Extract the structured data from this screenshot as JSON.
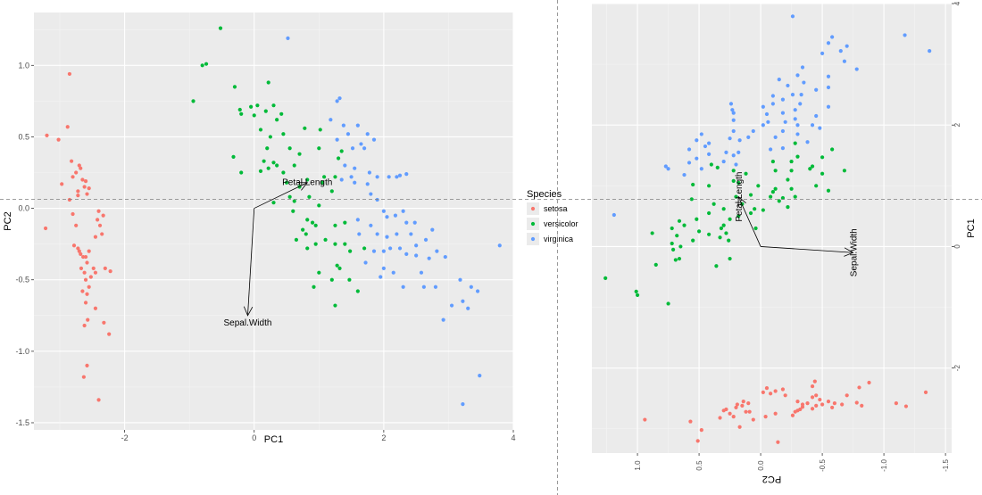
{
  "colors": {
    "setosa": "#F8766D",
    "versicolor": "#00BA38",
    "virginica": "#619CFF",
    "panel_bg": "#EBEBEB",
    "grid_major": "#FFFFFF",
    "grid_minor": "#F4F4F4",
    "tick_text": "#4D4D4D",
    "arrow": "#000000",
    "divider": "#808080"
  },
  "legend": {
    "title": "Species",
    "entries": [
      {
        "label": "setosa",
        "color": "#F8766D"
      },
      {
        "label": "versicolor",
        "color": "#00BA38"
      },
      {
        "label": "virginica",
        "color": "#619CFF"
      }
    ]
  },
  "chart_data": [
    {
      "type": "scatter",
      "xlabel": "PC1",
      "ylabel": "PC2",
      "xlim": [
        -3.4,
        4.0
      ],
      "ylim": [
        -1.55,
        1.37
      ],
      "xticks": [
        -2,
        0,
        2,
        4
      ],
      "yticks": [
        -1.5,
        -1.0,
        -0.5,
        0.0,
        0.5,
        1.0
      ],
      "ytick_labels": [
        "-1.5",
        "-1.0",
        "-0.5",
        "0.0",
        "0.5",
        "1.0"
      ],
      "grid": true,
      "series": [
        {
          "name": "setosa",
          "points": [
            [
              -3.2,
              0.51
            ],
            [
              -3.22,
              -0.14
            ],
            [
              -3.02,
              0.48
            ],
            [
              -2.97,
              0.17
            ],
            [
              -2.88,
              0.57
            ],
            [
              -2.85,
              0.94
            ],
            [
              -2.82,
              0.33
            ],
            [
              -2.8,
              0.22
            ],
            [
              -2.75,
              0.25
            ],
            [
              -2.72,
              0.12
            ],
            [
              -2.72,
              0.09
            ],
            [
              -2.7,
              0.3
            ],
            [
              -2.68,
              0.28
            ],
            [
              -2.65,
              0.2
            ],
            [
              -2.62,
              0.15
            ],
            [
              -2.6,
              0.19
            ],
            [
              -2.58,
              0.1
            ],
            [
              -2.55,
              0.14
            ],
            [
              -2.85,
              0.06
            ],
            [
              -2.8,
              -0.04
            ],
            [
              -2.75,
              -0.12
            ],
            [
              -2.78,
              -0.26
            ],
            [
              -2.72,
              -0.28
            ],
            [
              -2.7,
              -0.3
            ],
            [
              -2.68,
              -0.32
            ],
            [
              -2.64,
              -0.34
            ],
            [
              -2.6,
              -0.34
            ],
            [
              -2.67,
              -0.42
            ],
            [
              -2.62,
              -0.45
            ],
            [
              -2.58,
              -0.38
            ],
            [
              -2.55,
              -0.3
            ],
            [
              -2.52,
              -0.48
            ],
            [
              -2.48,
              -0.42
            ],
            [
              -2.45,
              -0.45
            ],
            [
              -2.65,
              -0.58
            ],
            [
              -2.6,
              -0.5
            ],
            [
              -2.58,
              -0.6
            ],
            [
              -2.55,
              -0.55
            ],
            [
              -2.45,
              -0.2
            ],
            [
              -2.42,
              -0.08
            ],
            [
              -2.4,
              -0.02
            ],
            [
              -2.38,
              -0.12
            ],
            [
              -2.35,
              -0.18
            ],
            [
              -2.33,
              -0.05
            ],
            [
              -2.3,
              -0.42
            ],
            [
              -2.22,
              -0.44
            ],
            [
              -2.62,
              -0.82
            ],
            [
              -2.57,
              -0.78
            ],
            [
              -2.45,
              -0.7
            ],
            [
              -2.32,
              -0.8
            ],
            [
              -2.24,
              -0.88
            ],
            [
              -2.58,
              -1.1
            ],
            [
              -2.63,
              -1.18
            ],
            [
              -2.4,
              -1.34
            ],
            [
              -2.6,
              -0.66
            ]
          ]
        },
        {
          "name": "versicolor",
          "points": [
            [
              -0.52,
              1.26
            ],
            [
              -0.8,
              1.0
            ],
            [
              -0.74,
              1.01
            ],
            [
              -0.94,
              0.75
            ],
            [
              -0.3,
              0.85
            ],
            [
              -0.2,
              0.66
            ],
            [
              -0.05,
              0.71
            ],
            [
              0.05,
              0.72
            ],
            [
              0.18,
              0.68
            ],
            [
              0.22,
              0.88
            ],
            [
              0.3,
              0.72
            ],
            [
              0.42,
              0.66
            ],
            [
              -0.22,
              0.69
            ],
            [
              0.0,
              0.65
            ],
            [
              0.35,
              0.62
            ],
            [
              0.1,
              0.55
            ],
            [
              0.25,
              0.5
            ],
            [
              0.45,
              0.52
            ],
            [
              0.78,
              0.56
            ],
            [
              0.55,
              0.42
            ],
            [
              0.7,
              0.38
            ],
            [
              1.0,
              0.42
            ],
            [
              0.2,
              0.42
            ],
            [
              0.15,
              0.33
            ],
            [
              0.3,
              0.32
            ],
            [
              0.22,
              0.28
            ],
            [
              0.35,
              0.3
            ],
            [
              0.62,
              0.3
            ],
            [
              0.1,
              0.26
            ],
            [
              -0.32,
              0.36
            ],
            [
              -0.2,
              0.25
            ],
            [
              1.02,
              0.55
            ],
            [
              1.35,
              0.4
            ],
            [
              1.3,
              0.35
            ],
            [
              0.45,
              0.25
            ],
            [
              0.82,
              0.2
            ],
            [
              0.5,
              0.18
            ],
            [
              1.08,
              0.22
            ],
            [
              1.25,
              0.22
            ],
            [
              0.7,
              0.15
            ],
            [
              1.2,
              0.12
            ],
            [
              1.05,
              0.18
            ],
            [
              0.55,
              0.08
            ],
            [
              0.3,
              0.04
            ],
            [
              0.62,
              0.05
            ],
            [
              0.85,
              0.08
            ],
            [
              1.0,
              0.02
            ],
            [
              0.6,
              -0.02
            ],
            [
              0.9,
              -0.1
            ],
            [
              0.82,
              -0.08
            ],
            [
              0.95,
              -0.12
            ],
            [
              1.25,
              -0.12
            ],
            [
              0.75,
              -0.15
            ],
            [
              0.8,
              -0.18
            ],
            [
              0.65,
              -0.22
            ],
            [
              0.82,
              -0.28
            ],
            [
              1.4,
              -0.1
            ],
            [
              0.95,
              -0.25
            ],
            [
              1.1,
              -0.22
            ],
            [
              1.25,
              -0.25
            ],
            [
              1.4,
              -0.25
            ],
            [
              1.7,
              -0.28
            ],
            [
              1.48,
              -0.3
            ],
            [
              1.28,
              -0.4
            ],
            [
              1.32,
              -0.42
            ],
            [
              1.2,
              -0.5
            ],
            [
              1.47,
              -0.5
            ],
            [
              1.0,
              -0.45
            ],
            [
              0.92,
              -0.55
            ],
            [
              1.6,
              -0.58
            ],
            [
              1.25,
              -0.68
            ]
          ]
        },
        {
          "name": "virginica",
          "points": [
            [
              0.52,
              1.19
            ],
            [
              1.28,
              0.75
            ],
            [
              1.32,
              0.77
            ],
            [
              1.18,
              0.62
            ],
            [
              1.38,
              0.58
            ],
            [
              1.45,
              0.52
            ],
            [
              1.6,
              0.58
            ],
            [
              1.75,
              0.52
            ],
            [
              1.85,
              0.48
            ],
            [
              1.28,
              0.48
            ],
            [
              1.52,
              0.42
            ],
            [
              1.65,
              0.45
            ],
            [
              1.7,
              0.42
            ],
            [
              1.4,
              0.3
            ],
            [
              1.55,
              0.28
            ],
            [
              1.78,
              0.25
            ],
            [
              1.9,
              0.22
            ],
            [
              2.08,
              0.22
            ],
            [
              2.2,
              0.22
            ],
            [
              2.25,
              0.23
            ],
            [
              2.35,
              0.24
            ],
            [
              1.5,
              0.22
            ],
            [
              1.35,
              0.2
            ],
            [
              1.55,
              0.18
            ],
            [
              1.75,
              0.17
            ],
            [
              1.8,
              0.1
            ],
            [
              1.9,
              0.06
            ],
            [
              2.0,
              -0.02
            ],
            [
              2.05,
              -0.06
            ],
            [
              2.18,
              -0.05
            ],
            [
              2.35,
              -0.1
            ],
            [
              2.48,
              -0.1
            ],
            [
              2.3,
              -0.02
            ],
            [
              1.6,
              -0.08
            ],
            [
              1.8,
              -0.12
            ],
            [
              1.9,
              -0.18
            ],
            [
              2.05,
              -0.2
            ],
            [
              2.2,
              -0.18
            ],
            [
              2.42,
              -0.18
            ],
            [
              1.85,
              -0.3
            ],
            [
              2.0,
              -0.3
            ],
            [
              2.1,
              -0.28
            ],
            [
              2.25,
              -0.28
            ],
            [
              2.35,
              -0.32
            ],
            [
              2.5,
              -0.33
            ],
            [
              2.7,
              -0.35
            ],
            [
              2.95,
              -0.34
            ],
            [
              2.82,
              -0.3
            ],
            [
              2.5,
              -0.26
            ],
            [
              2.75,
              -0.15
            ],
            [
              2.58,
              -0.45
            ],
            [
              2.3,
              -0.55
            ],
            [
              2.62,
              -0.55
            ],
            [
              2.8,
              -0.55
            ],
            [
              3.05,
              -0.68
            ],
            [
              3.18,
              -0.5
            ],
            [
              3.35,
              -0.55
            ],
            [
              2.92,
              -0.78
            ],
            [
              3.3,
              -0.7
            ],
            [
              3.45,
              -0.58
            ],
            [
              3.79,
              -0.26
            ],
            [
              3.22,
              -0.65
            ],
            [
              3.48,
              -1.17
            ],
            [
              3.22,
              -1.37
            ],
            [
              2.15,
              -0.45
            ],
            [
              2.0,
              -0.42
            ],
            [
              1.95,
              -0.48
            ],
            [
              2.65,
              -0.22
            ],
            [
              1.72,
              -0.38
            ],
            [
              1.62,
              -0.18
            ]
          ]
        }
      ],
      "arrows": [
        {
          "label": "Petal.Length",
          "from": [
            0,
            0
          ],
          "to": [
            0.82,
            0.18
          ]
        },
        {
          "label": "Sepal.Width",
          "from": [
            0,
            0
          ],
          "to": [
            -0.1,
            -0.75
          ]
        }
      ],
      "hline": 0.0,
      "legend_position": "right"
    },
    {
      "type": "scatter",
      "orientation": "rotated",
      "xlabel": "PC2",
      "ylabel": "PC1",
      "xlim": [
        1.37,
        -1.55
      ],
      "ylim": [
        -3.4,
        4.0
      ],
      "xticks": [
        1.0,
        0.5,
        0.0,
        -0.5,
        -1.0,
        -1.5
      ],
      "xtick_labels": [
        "1.0",
        "0.5",
        "0.0",
        "-0.5",
        "-1.0",
        "-1.5"
      ],
      "yticks": [
        -2,
        0,
        2,
        4
      ],
      "grid": true,
      "arrows": [
        {
          "label": "Petal.Length",
          "from": [
            0,
            0
          ],
          "to": [
            0.18,
            0.82
          ]
        },
        {
          "label": "Sepal.Width",
          "from": [
            0,
            0
          ],
          "to": [
            -0.75,
            -0.1
          ]
        }
      ],
      "hline": 0.0,
      "note": "same data as first panel with axes swapped (PC2 on x, PC1 on y)"
    }
  ]
}
